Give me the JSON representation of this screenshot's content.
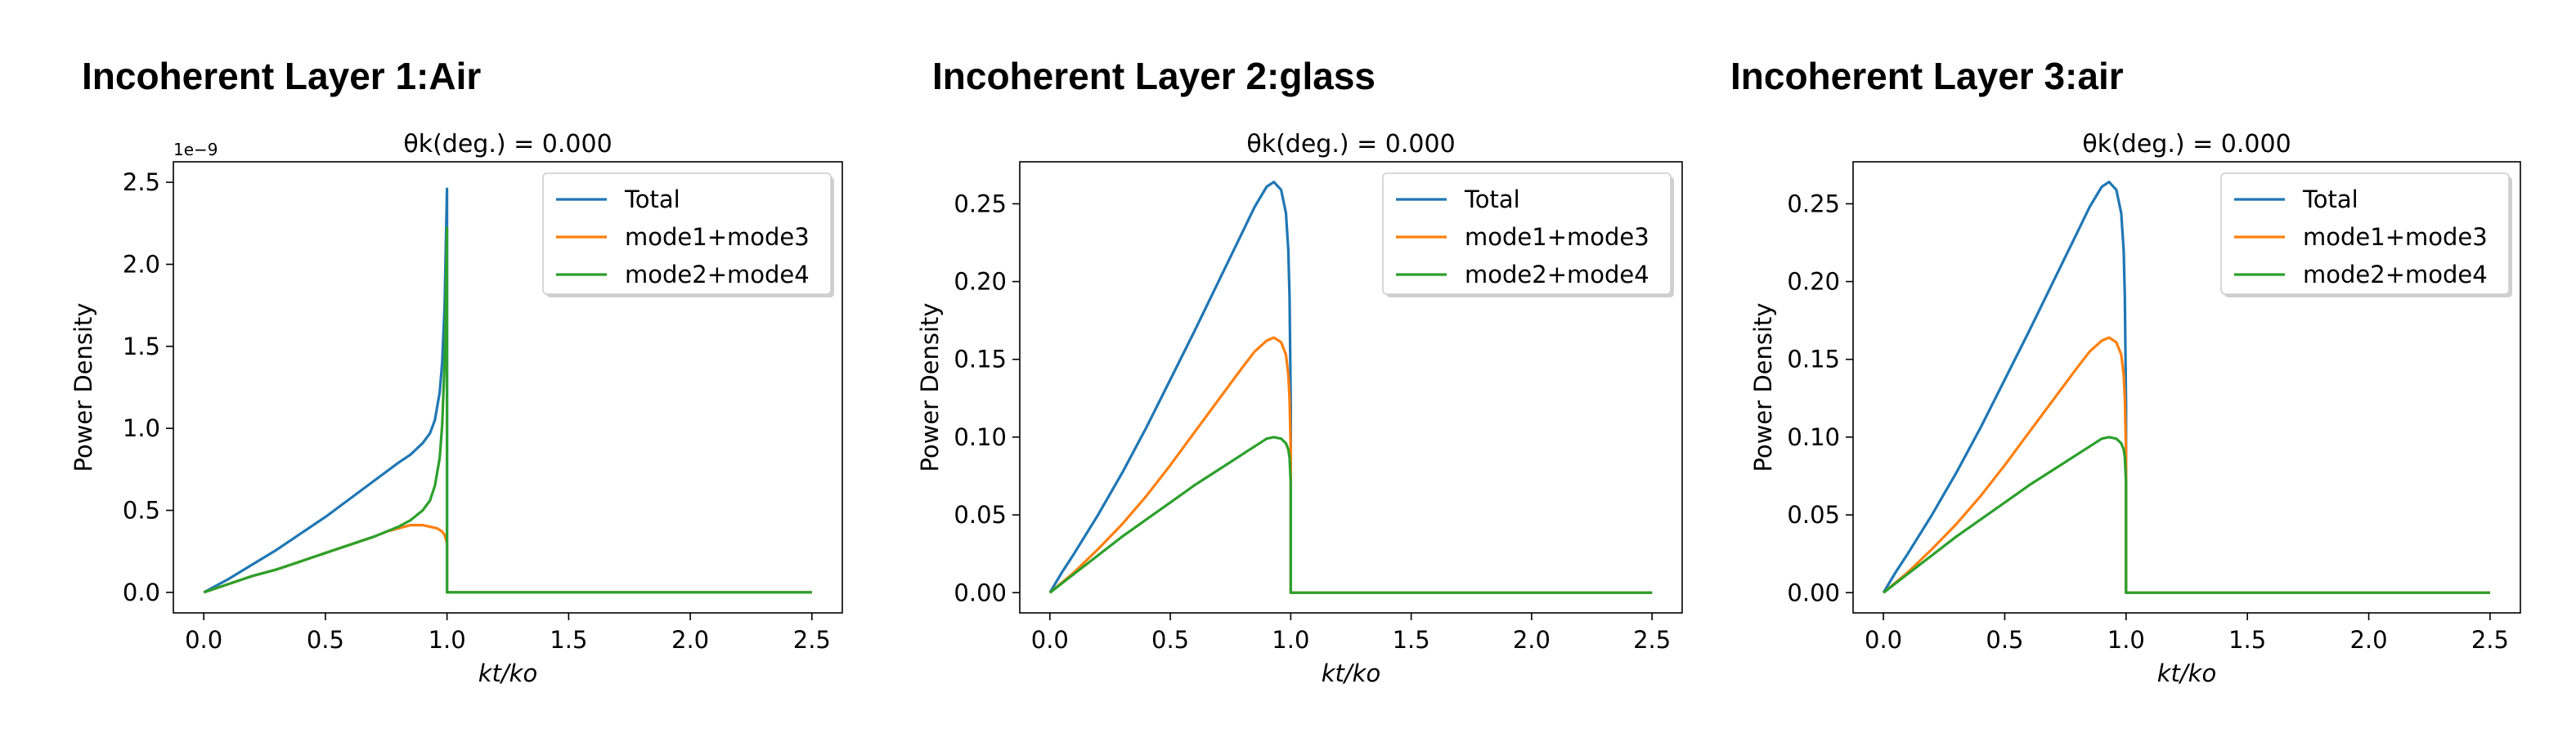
{
  "chart_data": [
    {
      "type": "line",
      "title": "Incoherent Layer 1:Air",
      "subtitle": "θk(deg.) = 0.000",
      "xlabel": "kt/ko",
      "ylabel": "Power Density",
      "offset_text": "1e−9",
      "xlim": [
        -0.125,
        2.625
      ],
      "ylim": [
        -0.125,
        2.625
      ],
      "xticks": [
        0.0,
        0.5,
        1.0,
        1.5,
        2.0,
        2.5
      ],
      "xtick_labels": [
        "0.0",
        "0.5",
        "1.0",
        "1.5",
        "2.0",
        "2.5"
      ],
      "yticks": [
        0.0,
        0.5,
        1.0,
        1.5,
        2.0,
        2.5
      ],
      "ytick_labels": [
        "0.0",
        "0.5",
        "1.0",
        "1.5",
        "2.0",
        "2.5"
      ],
      "legend_position": "top-right",
      "grid": false,
      "series": [
        {
          "name": "Total",
          "color": "#1f77b4",
          "x": [
            0,
            0.1,
            0.2,
            0.3,
            0.4,
            0.5,
            0.6,
            0.7,
            0.8,
            0.85,
            0.9,
            0.93,
            0.95,
            0.97,
            0.98,
            0.99,
            0.995,
            1.0,
            1.0,
            2.5
          ],
          "y": [
            0,
            0.08,
            0.17,
            0.26,
            0.36,
            0.46,
            0.57,
            0.68,
            0.79,
            0.84,
            0.91,
            0.97,
            1.05,
            1.22,
            1.4,
            1.75,
            2.1,
            2.46,
            0,
            0
          ]
        },
        {
          "name": "mode1+mode3",
          "color": "#ff7f0e",
          "x": [
            0,
            0.1,
            0.2,
            0.3,
            0.4,
            0.5,
            0.6,
            0.7,
            0.75,
            0.8,
            0.85,
            0.88,
            0.9,
            0.93,
            0.96,
            0.98,
            0.99,
            1.0,
            1.0,
            2.5
          ],
          "y": [
            0,
            0.05,
            0.1,
            0.14,
            0.19,
            0.24,
            0.29,
            0.34,
            0.37,
            0.39,
            0.41,
            0.41,
            0.41,
            0.4,
            0.39,
            0.37,
            0.35,
            0.3,
            0,
            0
          ]
        },
        {
          "name": "mode2+mode4",
          "color": "#2ca02c",
          "x": [
            0,
            0.1,
            0.2,
            0.3,
            0.4,
            0.5,
            0.6,
            0.7,
            0.8,
            0.85,
            0.9,
            0.93,
            0.95,
            0.97,
            0.98,
            0.99,
            0.995,
            1.0,
            1.0,
            2.5
          ],
          "y": [
            0,
            0.05,
            0.1,
            0.14,
            0.19,
            0.24,
            0.29,
            0.34,
            0.4,
            0.44,
            0.5,
            0.56,
            0.65,
            0.82,
            1.02,
            1.4,
            1.78,
            2.22,
            0,
            0
          ]
        }
      ]
    },
    {
      "type": "line",
      "title": "Incoherent Layer 2:glass",
      "subtitle": "θk(deg.) = 0.000",
      "xlabel": "kt/ko",
      "ylabel": "Power Density",
      "xlim": [
        -0.125,
        2.625
      ],
      "ylim": [
        -0.013,
        0.277
      ],
      "xticks": [
        0.0,
        0.5,
        1.0,
        1.5,
        2.0,
        2.5
      ],
      "xtick_labels": [
        "0.0",
        "0.5",
        "1.0",
        "1.5",
        "2.0",
        "2.5"
      ],
      "yticks": [
        0.0,
        0.05,
        0.1,
        0.15,
        0.2,
        0.25
      ],
      "ytick_labels": [
        "0.00",
        "0.05",
        "0.10",
        "0.15",
        "0.20",
        "0.25"
      ],
      "legend_position": "top-right",
      "grid": false,
      "series": [
        {
          "name": "Total",
          "color": "#1f77b4",
          "x": [
            0,
            0.05,
            0.1,
            0.2,
            0.3,
            0.4,
            0.5,
            0.6,
            0.7,
            0.8,
            0.85,
            0.9,
            0.93,
            0.96,
            0.98,
            0.99,
            0.995,
            1.0,
            1.0,
            2.5
          ],
          "y": [
            0,
            0.013,
            0.025,
            0.05,
            0.077,
            0.106,
            0.137,
            0.168,
            0.2,
            0.232,
            0.248,
            0.261,
            0.264,
            0.259,
            0.244,
            0.22,
            0.19,
            0.12,
            0,
            0
          ]
        },
        {
          "name": "mode1+mode3",
          "color": "#ff7f0e",
          "x": [
            0,
            0.1,
            0.2,
            0.3,
            0.4,
            0.5,
            0.6,
            0.7,
            0.8,
            0.85,
            0.9,
            0.93,
            0.96,
            0.98,
            0.99,
            0.995,
            1.0,
            1.0,
            2.5
          ],
          "y": [
            0,
            0.013,
            0.028,
            0.044,
            0.062,
            0.082,
            0.103,
            0.124,
            0.145,
            0.155,
            0.162,
            0.164,
            0.161,
            0.153,
            0.14,
            0.125,
            0.09,
            0,
            0
          ]
        },
        {
          "name": "mode2+mode4",
          "color": "#2ca02c",
          "x": [
            0,
            0.1,
            0.2,
            0.3,
            0.4,
            0.5,
            0.6,
            0.7,
            0.8,
            0.85,
            0.9,
            0.93,
            0.96,
            0.98,
            0.99,
            0.995,
            1.0,
            1.0,
            2.5
          ],
          "y": [
            0,
            0.012,
            0.024,
            0.036,
            0.047,
            0.058,
            0.069,
            0.079,
            0.089,
            0.094,
            0.099,
            0.1,
            0.099,
            0.096,
            0.092,
            0.087,
            0.07,
            0,
            0
          ]
        }
      ]
    },
    {
      "type": "line",
      "title": "Incoherent Layer 3:air",
      "subtitle": "θk(deg.) = 0.000",
      "xlabel": "kt/ko",
      "ylabel": "Power Density",
      "xlim": [
        -0.125,
        2.625
      ],
      "ylim": [
        -0.013,
        0.277
      ],
      "xticks": [
        0.0,
        0.5,
        1.0,
        1.5,
        2.0,
        2.5
      ],
      "xtick_labels": [
        "0.0",
        "0.5",
        "1.0",
        "1.5",
        "2.0",
        "2.5"
      ],
      "yticks": [
        0.0,
        0.05,
        0.1,
        0.15,
        0.2,
        0.25
      ],
      "ytick_labels": [
        "0.00",
        "0.05",
        "0.10",
        "0.15",
        "0.20",
        "0.25"
      ],
      "legend_position": "top-right",
      "grid": false,
      "series": [
        {
          "name": "Total",
          "color": "#1f77b4",
          "x": [
            0,
            0.05,
            0.1,
            0.2,
            0.3,
            0.4,
            0.5,
            0.6,
            0.7,
            0.8,
            0.85,
            0.9,
            0.93,
            0.96,
            0.98,
            0.99,
            0.995,
            1.0,
            1.0,
            2.5
          ],
          "y": [
            0,
            0.013,
            0.025,
            0.05,
            0.077,
            0.106,
            0.137,
            0.168,
            0.2,
            0.232,
            0.248,
            0.261,
            0.264,
            0.259,
            0.244,
            0.22,
            0.19,
            0.12,
            0,
            0
          ]
        },
        {
          "name": "mode1+mode3",
          "color": "#ff7f0e",
          "x": [
            0,
            0.1,
            0.2,
            0.3,
            0.4,
            0.5,
            0.6,
            0.7,
            0.8,
            0.85,
            0.9,
            0.93,
            0.96,
            0.98,
            0.99,
            0.995,
            1.0,
            1.0,
            2.5
          ],
          "y": [
            0,
            0.013,
            0.028,
            0.044,
            0.062,
            0.082,
            0.103,
            0.124,
            0.145,
            0.155,
            0.162,
            0.164,
            0.161,
            0.153,
            0.14,
            0.125,
            0.09,
            0,
            0
          ]
        },
        {
          "name": "mode2+mode4",
          "color": "#2ca02c",
          "x": [
            0,
            0.1,
            0.2,
            0.3,
            0.4,
            0.5,
            0.6,
            0.7,
            0.8,
            0.85,
            0.9,
            0.93,
            0.96,
            0.98,
            0.99,
            0.995,
            1.0,
            1.0,
            2.5
          ],
          "y": [
            0,
            0.012,
            0.024,
            0.036,
            0.047,
            0.058,
            0.069,
            0.079,
            0.089,
            0.094,
            0.099,
            0.1,
            0.099,
            0.096,
            0.092,
            0.087,
            0.07,
            0,
            0
          ]
        }
      ]
    }
  ]
}
